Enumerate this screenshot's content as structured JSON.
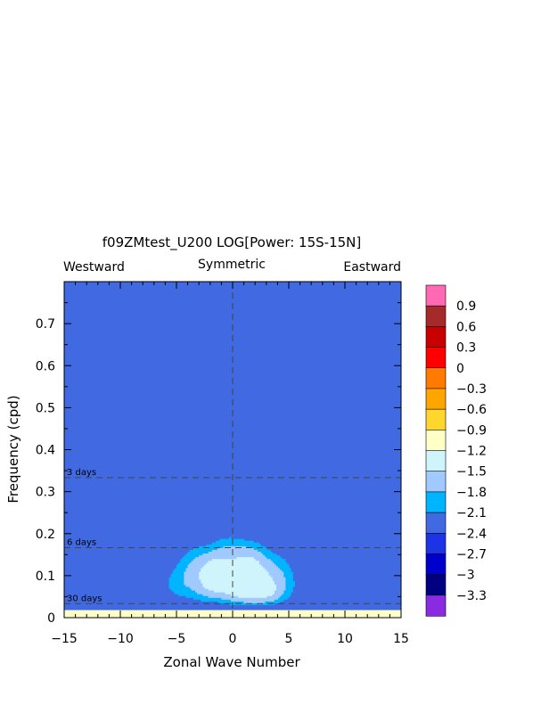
{
  "chart_data": {
    "type": "heatmap",
    "title": "f09ZMtest_U200 LOG[Power: 15S-15N]",
    "subtitle_left": "Westward",
    "subtitle_center": "Symmetric",
    "subtitle_right": "Eastward",
    "xlabel": "Zonal Wave Number",
    "ylabel": "Frequency (cpd)",
    "xlim": [
      -15,
      15
    ],
    "ylim": [
      0,
      0.8
    ],
    "xticks": [
      -15,
      -10,
      -5,
      0,
      5,
      10,
      15
    ],
    "xtick_labels": [
      "−15",
      "−10",
      "−5",
      "0",
      "5",
      "10",
      "15"
    ],
    "yticks": [
      0,
      0.1,
      0.2,
      0.3,
      0.4,
      0.5,
      0.6,
      0.7
    ],
    "ytick_labels": [
      "0",
      "0.1",
      "0.2",
      "0.3",
      "0.4",
      "0.5",
      "0.6",
      "0.7"
    ],
    "period_lines": [
      {
        "label": "3 days",
        "freq": 0.3333
      },
      {
        "label": "6 days",
        "freq": 0.1667
      },
      {
        "label": "30 days",
        "freq": 0.0333
      }
    ],
    "zero_line_x": 0,
    "colorbar": {
      "levels": [
        0.9,
        0.6,
        0.3,
        0,
        -0.3,
        -0.6,
        -0.9,
        -1.2,
        -1.5,
        -1.8,
        -2.1,
        -2.4,
        -2.7,
        -3,
        -3.3
      ],
      "labels": [
        "0.9",
        "0.6",
        "0.3",
        "0",
        "−0.3",
        "−0.6",
        "−0.9",
        "−1.2",
        "−1.5",
        "−1.8",
        "−2.1",
        "−2.4",
        "−2.7",
        "−3",
        "−3.3"
      ],
      "colors": [
        "#ff69b4",
        "#a52a2a",
        "#c80000",
        "#ff0000",
        "#ff7a00",
        "#ffa500",
        "#ffd62e",
        "#ffffc8",
        "#cff4fc",
        "#a0caff",
        "#00b4ff",
        "#4169e1",
        "#1e32e6",
        "#0000cd",
        "#000080",
        "#8a2be2"
      ]
    },
    "contour_bands": [
      {
        "level": -2.4,
        "color": "#4169e1"
      },
      {
        "level": -2.1,
        "color": "#00b4ff"
      },
      {
        "level": -1.8,
        "color": "#a0caff"
      },
      {
        "level": -1.5,
        "color": "#cff4fc"
      },
      {
        "level": -1.2,
        "color": "#ffffc8"
      },
      {
        "level": -0.9,
        "color": "#ffd62e"
      },
      {
        "level": -0.6,
        "color": "#ffa500"
      },
      {
        "level": -0.3,
        "color": "#ff7a00"
      },
      {
        "level": 0,
        "color": "#ff0000"
      },
      {
        "level": 0.3,
        "color": "#c80000"
      },
      {
        "level": 0.6,
        "color": "#a52a2a"
      },
      {
        "level": 0.9,
        "color": "#ff69b4"
      }
    ]
  }
}
